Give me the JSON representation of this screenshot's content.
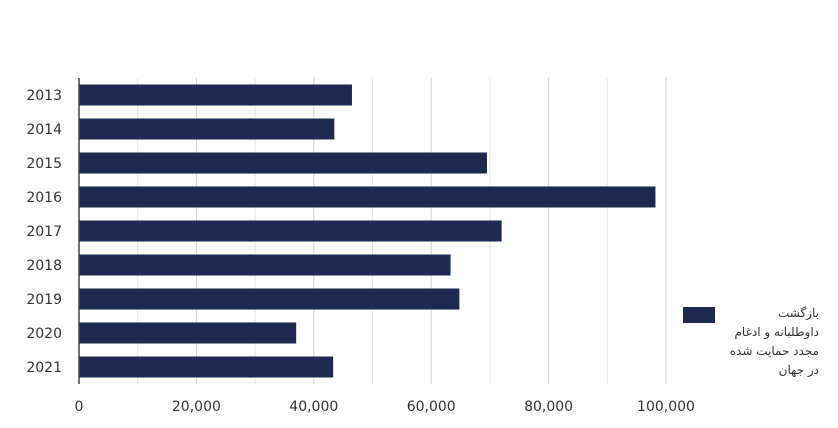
{
  "chart_data": {
    "type": "bar",
    "orientation": "horizontal",
    "categories": [
      "2013",
      "2014",
      "2015",
      "2016",
      "2017",
      "2018",
      "2019",
      "2020",
      "2021"
    ],
    "series": [
      {
        "name": "بازگشت\nداوطلبانه و ادغام\nمجدد حمایت شده\nدر جهان",
        "values": [
          46500,
          43500,
          69500,
          98200,
          72000,
          63300,
          64800,
          37000,
          43300
        ],
        "color": "#1b2a4e"
      }
    ],
    "x_ticks": [
      "0",
      "20,000",
      "40,000",
      "60,000",
      "80,000",
      "100,000"
    ],
    "xlim": [
      0,
      105000
    ],
    "grid": true,
    "legend_position": "right",
    "title": "",
    "xlabel": "",
    "ylabel": ""
  }
}
